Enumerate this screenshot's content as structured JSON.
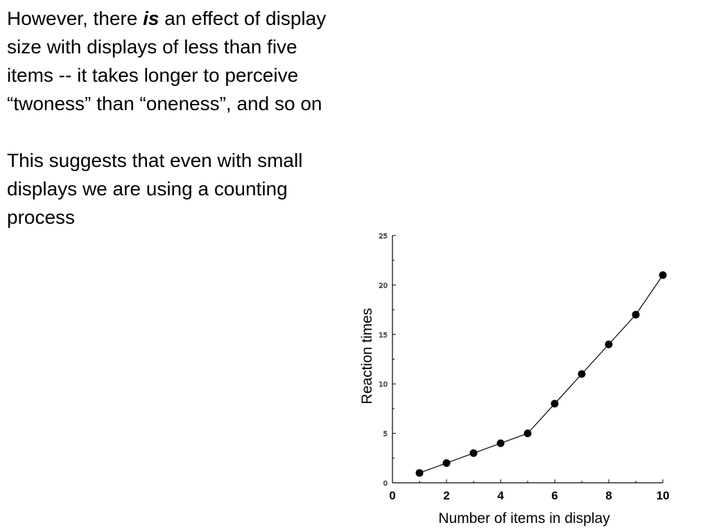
{
  "slide": {
    "paragraph1": {
      "before": "However, there ",
      "emphasis": "is",
      "after": " an effect of display size with displays of less than five items -- it takes longer to perceive “twoness” than “oneness”, and so on"
    },
    "paragraph2": "This suggests that even with small displays we are using a counting process"
  },
  "chart_data": {
    "type": "line",
    "title": "",
    "xlabel": "Number of items in display",
    "ylabel": "Reaction times",
    "xlim": [
      0,
      10
    ],
    "ylim": [
      0,
      25
    ],
    "x_ticks": [
      0,
      2,
      4,
      6,
      8,
      10
    ],
    "y_ticks": [
      0,
      5,
      10,
      15,
      20,
      25
    ],
    "grid": false,
    "legend": "none",
    "series": [
      {
        "x": [
          1,
          2,
          3,
          4,
          5,
          6,
          7,
          8,
          9,
          10
        ],
        "y": [
          1,
          2,
          3,
          4,
          5,
          8,
          11,
          14,
          17,
          21
        ]
      }
    ],
    "colors": {
      "line": "#000000",
      "marker": "#000000"
    }
  }
}
